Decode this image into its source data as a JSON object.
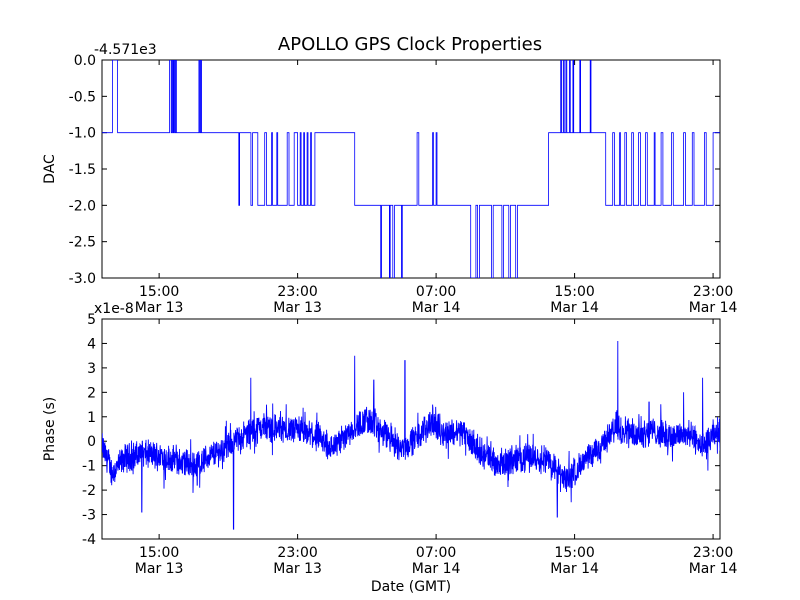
{
  "chart_data": [
    {
      "type": "line",
      "title": "APOLLO GPS Clock Properties",
      "ylabel": "DAC",
      "xlabel": "",
      "offset_label": "-4.571e3",
      "ylim": [
        -3.0,
        0.0
      ],
      "yticks": [
        "0.0",
        "-0.5",
        "-1.0",
        "-1.5",
        "-2.0",
        "-2.5",
        "-3.0"
      ],
      "xticks": [
        {
          "time": "15:00",
          "date": "Mar 13"
        },
        {
          "time": "23:00",
          "date": "Mar 13"
        },
        {
          "time": "07:00",
          "date": "Mar 14"
        },
        {
          "time": "15:00",
          "date": "Mar 14"
        },
        {
          "time": "23:00",
          "date": "Mar 14"
        }
      ],
      "xlim_hours": [
        11.7,
        47.4
      ],
      "xtick_hours": [
        15,
        23,
        31,
        39,
        47
      ],
      "color": "#0000ff",
      "segments": [
        [
          11.7,
          -1
        ],
        [
          12.3,
          0
        ],
        [
          12.6,
          -1
        ],
        [
          15.6,
          0
        ],
        [
          15.7,
          -1
        ],
        [
          15.75,
          0
        ],
        [
          15.8,
          -1
        ],
        [
          15.85,
          0
        ],
        [
          15.9,
          -1
        ],
        [
          15.95,
          0
        ],
        [
          16.0,
          -1
        ],
        [
          17.3,
          0
        ],
        [
          17.35,
          -1
        ],
        [
          17.4,
          0
        ],
        [
          17.45,
          -1
        ],
        [
          19.6,
          -2
        ],
        [
          19.65,
          -1
        ],
        [
          20.3,
          -2
        ],
        [
          20.4,
          -1
        ],
        [
          20.7,
          -2
        ],
        [
          21.1,
          -1
        ],
        [
          21.2,
          -2
        ],
        [
          21.5,
          -1
        ],
        [
          21.55,
          -2
        ],
        [
          21.8,
          -1
        ],
        [
          21.85,
          -2
        ],
        [
          22.4,
          -1
        ],
        [
          22.5,
          -2
        ],
        [
          22.8,
          -1
        ],
        [
          23.0,
          -2
        ],
        [
          23.15,
          -1
        ],
        [
          23.2,
          -2
        ],
        [
          23.35,
          -1
        ],
        [
          23.4,
          -2
        ],
        [
          23.55,
          -1
        ],
        [
          23.6,
          -2
        ],
        [
          23.75,
          -1
        ],
        [
          23.8,
          -2
        ],
        [
          24.0,
          -1
        ],
        [
          26.3,
          -2
        ],
        [
          27.8,
          -3
        ],
        [
          27.85,
          -2
        ],
        [
          28.3,
          -3
        ],
        [
          28.35,
          -2
        ],
        [
          28.5,
          -3
        ],
        [
          28.6,
          -2
        ],
        [
          29.0,
          -3
        ],
        [
          29.05,
          -2
        ],
        [
          29.9,
          -1
        ],
        [
          30.0,
          -2
        ],
        [
          30.8,
          -1
        ],
        [
          30.85,
          -2
        ],
        [
          31.0,
          -1
        ],
        [
          31.05,
          -2
        ],
        [
          33.0,
          -3
        ],
        [
          33.3,
          -2
        ],
        [
          33.4,
          -3
        ],
        [
          33.5,
          -2
        ],
        [
          34.2,
          -3
        ],
        [
          34.3,
          -2
        ],
        [
          34.8,
          -3
        ],
        [
          34.9,
          -2
        ],
        [
          35.2,
          -3
        ],
        [
          35.3,
          -2
        ],
        [
          35.6,
          -3
        ],
        [
          35.7,
          -2
        ],
        [
          36.7,
          -2
        ],
        [
          37.5,
          -1
        ],
        [
          38.0,
          -1
        ],
        [
          38.2,
          0
        ],
        [
          38.25,
          -1
        ],
        [
          38.35,
          0
        ],
        [
          38.4,
          -1
        ],
        [
          38.5,
          0
        ],
        [
          38.55,
          -1
        ],
        [
          38.7,
          0
        ],
        [
          38.75,
          -1
        ],
        [
          38.9,
          0
        ],
        [
          38.95,
          -1
        ],
        [
          39.3,
          0
        ],
        [
          39.35,
          -1
        ],
        [
          39.9,
          0
        ],
        [
          39.95,
          -1
        ],
        [
          40.7,
          -1
        ],
        [
          40.8,
          -2
        ],
        [
          41.2,
          -1
        ],
        [
          41.3,
          -2
        ],
        [
          41.6,
          -1
        ],
        [
          41.65,
          -2
        ],
        [
          41.9,
          -1
        ],
        [
          42.0,
          -2
        ],
        [
          42.3,
          -1
        ],
        [
          42.4,
          -2
        ],
        [
          42.7,
          -1
        ],
        [
          42.8,
          -2
        ],
        [
          43.1,
          -1
        ],
        [
          43.2,
          -2
        ],
        [
          43.6,
          -1
        ],
        [
          43.65,
          -2
        ],
        [
          44.0,
          -1
        ],
        [
          44.1,
          -2
        ],
        [
          44.6,
          -1
        ],
        [
          44.7,
          -2
        ],
        [
          45.3,
          -1
        ],
        [
          45.4,
          -2
        ],
        [
          45.8,
          -1
        ],
        [
          45.9,
          -2
        ],
        [
          46.5,
          -1
        ],
        [
          46.6,
          -2
        ],
        [
          47.0,
          -1
        ],
        [
          47.4,
          -1
        ]
      ]
    },
    {
      "type": "line",
      "title": "",
      "ylabel": "Phase (s)",
      "xlabel": "Date (GMT)",
      "offset_label": "x1e-8",
      "ylim": [
        -4,
        5
      ],
      "yticks": [
        "5",
        "4",
        "3",
        "2",
        "1",
        "0",
        "-1",
        "-2",
        "-3",
        "-4"
      ],
      "xticks": [
        {
          "time": "15:00",
          "date": "Mar 13"
        },
        {
          "time": "23:00",
          "date": "Mar 13"
        },
        {
          "time": "07:00",
          "date": "Mar 14"
        },
        {
          "time": "15:00",
          "date": "Mar 14"
        },
        {
          "time": "23:00",
          "date": "Mar 14"
        }
      ],
      "xlim_hours": [
        11.7,
        47.4
      ],
      "xtick_hours": [
        15,
        23,
        31,
        39,
        47
      ],
      "color": "#0000ff",
      "trend": [
        [
          11.7,
          -0.2
        ],
        [
          12.3,
          -1.3
        ],
        [
          13.0,
          -0.7
        ],
        [
          14.0,
          -0.5
        ],
        [
          15.0,
          -0.6
        ],
        [
          16.0,
          -0.8
        ],
        [
          17.0,
          -1.0
        ],
        [
          18.0,
          -0.6
        ],
        [
          19.0,
          -0.2
        ],
        [
          20.0,
          0.3
        ],
        [
          21.0,
          0.6
        ],
        [
          22.0,
          0.5
        ],
        [
          23.0,
          0.4
        ],
        [
          24.0,
          0.2
        ],
        [
          25.0,
          -0.3
        ],
        [
          26.0,
          0.4
        ],
        [
          27.0,
          0.9
        ],
        [
          28.0,
          0.3
        ],
        [
          29.0,
          -0.3
        ],
        [
          30.0,
          0.2
        ],
        [
          30.7,
          0.8
        ],
        [
          31.5,
          0.3
        ],
        [
          32.5,
          0.4
        ],
        [
          33.5,
          -0.4
        ],
        [
          34.5,
          -0.9
        ],
        [
          35.5,
          -0.8
        ],
        [
          36.5,
          -0.6
        ],
        [
          37.5,
          -0.8
        ],
        [
          38.5,
          -1.6
        ],
        [
          39.5,
          -0.9
        ],
        [
          40.5,
          -0.2
        ],
        [
          41.5,
          0.6
        ],
        [
          42.5,
          0.3
        ],
        [
          43.5,
          0.4
        ],
        [
          44.5,
          0.2
        ],
        [
          45.5,
          0.3
        ],
        [
          46.5,
          -0.2
        ],
        [
          47.4,
          0.5
        ]
      ],
      "spikes": [
        [
          14.0,
          -2.9
        ],
        [
          17.2,
          -1.8
        ],
        [
          19.3,
          -3.6
        ],
        [
          20.3,
          2.6
        ],
        [
          21.2,
          1.5
        ],
        [
          26.3,
          3.5
        ],
        [
          27.4,
          2.5
        ],
        [
          29.2,
          3.3
        ],
        [
          30.8,
          1.5
        ],
        [
          38.0,
          -3.1
        ],
        [
          38.8,
          -2.5
        ],
        [
          41.5,
          4.1
        ],
        [
          43.3,
          1.6
        ],
        [
          45.3,
          2.0
        ],
        [
          46.4,
          2.6
        ],
        [
          46.7,
          -1.2
        ]
      ]
    }
  ]
}
